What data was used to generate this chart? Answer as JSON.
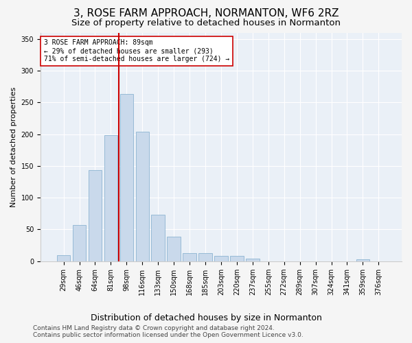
{
  "title": "3, ROSE FARM APPROACH, NORMANTON, WF6 2RZ",
  "subtitle": "Size of property relative to detached houses in Normanton",
  "xlabel": "Distribution of detached houses by size in Normanton",
  "ylabel": "Number of detached properties",
  "categories": [
    "29sqm",
    "46sqm",
    "64sqm",
    "81sqm",
    "98sqm",
    "116sqm",
    "133sqm",
    "150sqm",
    "168sqm",
    "185sqm",
    "203sqm",
    "220sqm",
    "237sqm",
    "255sqm",
    "272sqm",
    "289sqm",
    "307sqm",
    "324sqm",
    "341sqm",
    "359sqm",
    "376sqm"
  ],
  "values": [
    9,
    57,
    143,
    198,
    263,
    204,
    73,
    39,
    13,
    13,
    8,
    8,
    4,
    0,
    0,
    0,
    0,
    0,
    0,
    3,
    0
  ],
  "bar_color": "#c9d9eb",
  "bar_edge_color": "#8cb4d2",
  "vline_color": "#cc0000",
  "vline_x_index": 3.5,
  "annotation_text": "3 ROSE FARM APPROACH: 89sqm\n← 29% of detached houses are smaller (293)\n71% of semi-detached houses are larger (724) →",
  "annotation_box_facecolor": "#ffffff",
  "annotation_box_edgecolor": "#cc0000",
  "footer1": "Contains HM Land Registry data © Crown copyright and database right 2024.",
  "footer2": "Contains public sector information licensed under the Open Government Licence v3.0.",
  "ylim": [
    0,
    360
  ],
  "yticks": [
    0,
    50,
    100,
    150,
    200,
    250,
    300,
    350
  ],
  "bg_color": "#eaf0f7",
  "grid_color": "#ffffff",
  "fig_facecolor": "#f5f5f5",
  "title_fontsize": 11,
  "subtitle_fontsize": 9.5,
  "ylabel_fontsize": 8,
  "xlabel_fontsize": 9,
  "tick_fontsize": 7,
  "annotation_fontsize": 7,
  "footer_fontsize": 6.5
}
